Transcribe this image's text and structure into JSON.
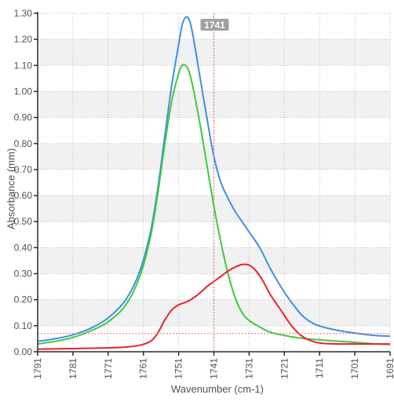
{
  "chart_data": {
    "type": "line",
    "title": "",
    "xlabel": "Wavenumber (cm-1)",
    "ylabel": "Absorbance (mm)",
    "xlim": [
      1791,
      1691
    ],
    "ylim": [
      0,
      1.3
    ],
    "x_reversed": true,
    "grid": true,
    "legend": "none",
    "x_ticks": [
      1791,
      1781,
      1771,
      1761,
      1751,
      1741,
      1731,
      1721,
      1711,
      1701,
      1691
    ],
    "y_ticks": [
      "0.00",
      "0.10",
      "0.20",
      "0.30",
      "0.40",
      "0.50",
      "0.60",
      "0.70",
      "0.80",
      "0.90",
      "1.00",
      "1.10",
      "1.20",
      "1.30"
    ],
    "cursor_x_label": "1741",
    "cursor_x": 1741,
    "cursor_y": 0.07,
    "colors": {
      "blue": "#3d8fe6",
      "green": "#3ec93e",
      "red": "#e8222a",
      "cursor": "#f06a6a",
      "band": "#f1f1f1",
      "grid": "#bdbdbd",
      "axis": "#2b2b2b",
      "text": "#505050",
      "cursor_badge": "#a0a0a0"
    },
    "series": [
      {
        "color": "#3d8fe6",
        "points": [
          [
            1791,
            0.04
          ],
          [
            1786,
            0.05
          ],
          [
            1781,
            0.065
          ],
          [
            1776,
            0.09
          ],
          [
            1771,
            0.13
          ],
          [
            1766,
            0.2
          ],
          [
            1762,
            0.31
          ],
          [
            1759,
            0.46
          ],
          [
            1757,
            0.62
          ],
          [
            1755,
            0.82
          ],
          [
            1753,
            1.02
          ],
          [
            1751,
            1.18
          ],
          [
            1750,
            1.255
          ],
          [
            1749,
            1.285
          ],
          [
            1748,
            1.275
          ],
          [
            1747,
            1.22
          ],
          [
            1745,
            1.06
          ],
          [
            1743,
            0.9
          ],
          [
            1741,
            0.75
          ],
          [
            1739,
            0.65
          ],
          [
            1737,
            0.59
          ],
          [
            1735,
            0.54
          ],
          [
            1733,
            0.5
          ],
          [
            1731,
            0.46
          ],
          [
            1728,
            0.4
          ],
          [
            1725,
            0.32
          ],
          [
            1722,
            0.25
          ],
          [
            1719,
            0.19
          ],
          [
            1716,
            0.14
          ],
          [
            1713,
            0.11
          ],
          [
            1710,
            0.095
          ],
          [
            1705,
            0.08
          ],
          [
            1700,
            0.07
          ],
          [
            1695,
            0.062
          ],
          [
            1691,
            0.06
          ]
        ]
      },
      {
        "color": "#3ec93e",
        "points": [
          [
            1791,
            0.03
          ],
          [
            1786,
            0.04
          ],
          [
            1781,
            0.055
          ],
          [
            1776,
            0.08
          ],
          [
            1771,
            0.115
          ],
          [
            1766,
            0.18
          ],
          [
            1762,
            0.29
          ],
          [
            1759,
            0.44
          ],
          [
            1757,
            0.6
          ],
          [
            1755,
            0.79
          ],
          [
            1753,
            0.96
          ],
          [
            1751,
            1.07
          ],
          [
            1750,
            1.1
          ],
          [
            1749,
            1.1
          ],
          [
            1748,
            1.075
          ],
          [
            1747,
            1.02
          ],
          [
            1745,
            0.88
          ],
          [
            1743,
            0.72
          ],
          [
            1741,
            0.56
          ],
          [
            1739,
            0.42
          ],
          [
            1737,
            0.3
          ],
          [
            1735,
            0.21
          ],
          [
            1733,
            0.15
          ],
          [
            1731,
            0.12
          ],
          [
            1728,
            0.095
          ],
          [
            1725,
            0.075
          ],
          [
            1720,
            0.06
          ],
          [
            1715,
            0.05
          ],
          [
            1710,
            0.045
          ],
          [
            1705,
            0.04
          ],
          [
            1700,
            0.035
          ],
          [
            1695,
            0.03
          ],
          [
            1691,
            0.028
          ]
        ]
      },
      {
        "color": "#e8222a",
        "points": [
          [
            1791,
            0.01
          ],
          [
            1781,
            0.012
          ],
          [
            1771,
            0.015
          ],
          [
            1766,
            0.018
          ],
          [
            1762,
            0.025
          ],
          [
            1759,
            0.04
          ],
          [
            1757,
            0.07
          ],
          [
            1755,
            0.12
          ],
          [
            1753,
            0.16
          ],
          [
            1751,
            0.18
          ],
          [
            1749,
            0.19
          ],
          [
            1747,
            0.205
          ],
          [
            1745,
            0.225
          ],
          [
            1743,
            0.25
          ],
          [
            1741,
            0.27
          ],
          [
            1739,
            0.29
          ],
          [
            1737,
            0.31
          ],
          [
            1735,
            0.325
          ],
          [
            1733,
            0.335
          ],
          [
            1731,
            0.333
          ],
          [
            1729,
            0.31
          ],
          [
            1727,
            0.27
          ],
          [
            1725,
            0.22
          ],
          [
            1722,
            0.16
          ],
          [
            1719,
            0.1
          ],
          [
            1716,
            0.06
          ],
          [
            1713,
            0.04
          ],
          [
            1710,
            0.032
          ],
          [
            1705,
            0.03
          ],
          [
            1700,
            0.03
          ],
          [
            1695,
            0.03
          ],
          [
            1691,
            0.03
          ]
        ]
      }
    ]
  }
}
